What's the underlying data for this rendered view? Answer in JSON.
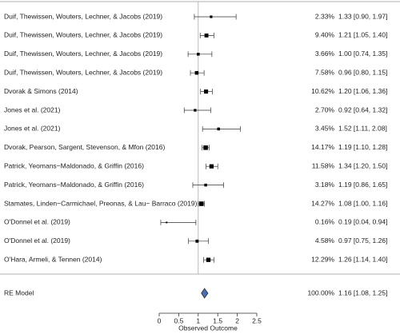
{
  "chart_data": {
    "type": "forest",
    "x_label": "Observed Outcome",
    "xlim": [
      0,
      2.5
    ],
    "xticks": [
      0,
      0.5,
      1,
      1.5,
      2,
      2.5
    ],
    "ref_line": 1,
    "color": "#000000",
    "categories": [
      "Duif, Thewissen, Wouters, Lechner, & Jacobs (2019)",
      "Duif, Thewissen, Wouters, Lechner, & Jacobs (2019)",
      "Duif, Thewissen, Wouters, Lechner, & Jacobs (2019)",
      "Duif, Thewissen, Wouters, Lechner, & Jacobs (2019)",
      "Dvorak & Simons (2014)",
      "Jones et al. (2021)",
      "Jones et al. (2021)",
      "Dvorak, Pearson, Sargent, Stevenson, & Mfon (2016)",
      "Patrick, Yeomans−Maldonado, & Griffin (2016)",
      "Patrick, Yeomans−Maldonado, & Griffin (2016)",
      "Stamates, Linden−Carmichael, Preonas, & Lau− Barraco (2019)",
      "O'Donnel et al. (2019)",
      "O'Donnel et al. (2019)",
      "O'Hara, Armeli, & Tennen (2014)"
    ],
    "values": [
      1.33,
      1.21,
      1.0,
      0.96,
      1.2,
      0.92,
      1.52,
      1.19,
      1.34,
      1.19,
      1.08,
      0.19,
      0.97,
      1.26
    ],
    "ci_low": [
      0.9,
      1.05,
      0.74,
      0.8,
      1.06,
      0.64,
      1.11,
      1.1,
      1.2,
      0.86,
      1.0,
      0.04,
      0.75,
      1.14
    ],
    "ci_high": [
      1.97,
      1.4,
      1.35,
      1.15,
      1.36,
      1.32,
      2.08,
      1.28,
      1.5,
      1.65,
      1.16,
      0.94,
      1.26,
      1.4
    ],
    "weights": [
      2.33,
      9.4,
      3.66,
      7.58,
      10.62,
      2.7,
      3.45,
      14.17,
      11.58,
      3.18,
      14.27,
      0.16,
      4.58,
      12.29
    ],
    "weight_labels": [
      "2.33%",
      "9.40%",
      "3.66%",
      "7.58%",
      "10.62%",
      "2.70%",
      "3.45%",
      "14.17%",
      "11.58%",
      "3.18%",
      "14.27%",
      "0.16%",
      "4.58%",
      "12.29%"
    ],
    "estimate_labels": [
      "1.33 [0.90, 1.97]",
      "1.21 [1.05, 1.40]",
      "1.00 [0.74, 1.35]",
      "0.96 [0.80, 1.15]",
      "1.20 [1.06, 1.36]",
      "0.92 [0.64, 1.32]",
      "1.52 [1.11, 2.08]",
      "1.19 [1.10, 1.28]",
      "1.34 [1.20, 1.50]",
      "1.19 [0.86, 1.65]",
      "1.08 [1.00, 1.16]",
      "0.19 [0.04, 0.94]",
      "0.97 [0.75, 1.26]",
      "1.26 [1.14, 1.40]"
    ],
    "summary": {
      "label": "RE Model",
      "value": 1.16,
      "ci_low": 1.08,
      "ci_high": 1.25,
      "weight": 100,
      "weight_label": "100.00%",
      "estimate_label": "1.16 [1.08, 1.25]",
      "color": "#4a6fb5"
    }
  }
}
